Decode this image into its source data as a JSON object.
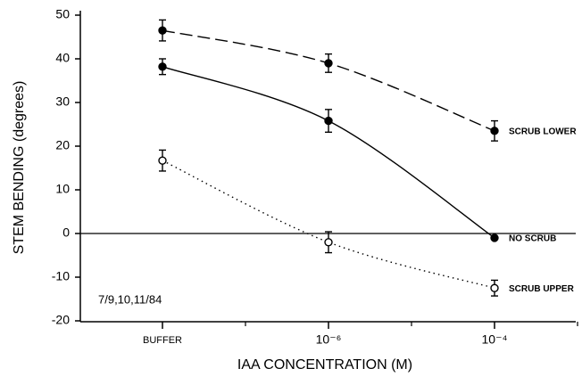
{
  "chart_data": {
    "type": "line",
    "y_label": "STEM BENDING (degrees)",
    "x_label": "IAA CONCENTRATION (M)",
    "annotation": "7/9,10,11/84",
    "categories": [
      "BUFFER",
      "10⁻⁶",
      "10⁻⁴"
    ],
    "series": [
      {
        "name": "SCRUB LOWER",
        "color": "#000000",
        "style": "dashed",
        "marker": "filled",
        "values": [
          46.5,
          39,
          23.5
        ],
        "errors": [
          2.4,
          2.1,
          2.3
        ]
      },
      {
        "name": "NO SCRUB",
        "color": "#000000",
        "style": "solid",
        "marker": "filled",
        "values": [
          38.2,
          25.8,
          -1
        ],
        "errors": [
          1.8,
          2.6,
          0
        ]
      },
      {
        "name": "SCRUB UPPER",
        "color": "#000000",
        "style": "dotted",
        "marker": "open",
        "values": [
          16.7,
          -2,
          -12.5
        ],
        "errors": [
          2.4,
          2.4,
          1.8
        ]
      }
    ],
    "ylim": [
      -20,
      50
    ],
    "yticks": [
      -20,
      -10,
      0,
      10,
      20,
      30,
      40,
      50
    ],
    "reference_line": 0
  }
}
